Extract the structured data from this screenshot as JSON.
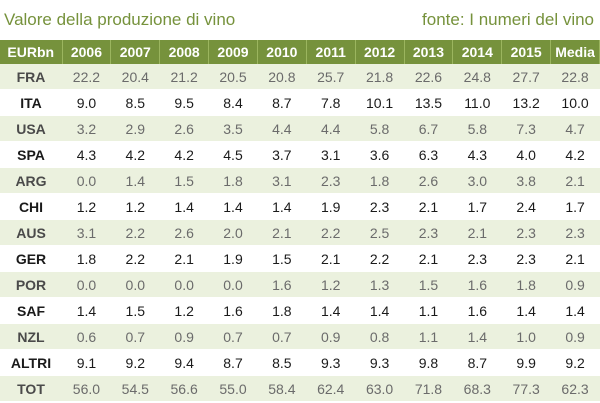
{
  "header": {
    "title": "Valore della produzione di vino",
    "source": "fonte: I numeri del vino"
  },
  "table": {
    "columns": [
      "EURbn",
      "2006",
      "2007",
      "2008",
      "2009",
      "2010",
      "2011",
      "2012",
      "2013",
      "2014",
      "2015",
      "Media"
    ],
    "rows": [
      [
        "FRA",
        "22.2",
        "20.4",
        "21.2",
        "20.5",
        "20.8",
        "25.7",
        "21.8",
        "22.6",
        "24.8",
        "27.7",
        "22.8"
      ],
      [
        "ITA",
        "9.0",
        "8.5",
        "9.5",
        "8.4",
        "8.7",
        "7.8",
        "10.1",
        "13.5",
        "11.0",
        "13.2",
        "10.0"
      ],
      [
        "USA",
        "3.2",
        "2.9",
        "2.6",
        "3.5",
        "4.4",
        "4.4",
        "5.8",
        "6.7",
        "5.8",
        "7.3",
        "4.7"
      ],
      [
        "SPA",
        "4.3",
        "4.2",
        "4.2",
        "4.5",
        "3.7",
        "3.1",
        "3.6",
        "6.3",
        "4.3",
        "4.0",
        "4.2"
      ],
      [
        "ARG",
        "0.0",
        "1.4",
        "1.5",
        "1.8",
        "3.1",
        "2.3",
        "1.8",
        "2.6",
        "3.0",
        "3.8",
        "2.1"
      ],
      [
        "CHI",
        "1.2",
        "1.2",
        "1.4",
        "1.4",
        "1.4",
        "1.9",
        "2.3",
        "2.1",
        "1.7",
        "2.4",
        "1.7"
      ],
      [
        "AUS",
        "3.1",
        "2.2",
        "2.6",
        "2.0",
        "2.1",
        "2.2",
        "2.5",
        "2.3",
        "2.1",
        "2.3",
        "2.3"
      ],
      [
        "GER",
        "1.8",
        "2.2",
        "2.1",
        "1.9",
        "1.5",
        "2.1",
        "2.2",
        "2.1",
        "2.3",
        "2.3",
        "2.1"
      ],
      [
        "POR",
        "0.0",
        "0.0",
        "0.0",
        "0.0",
        "1.6",
        "1.2",
        "1.3",
        "1.5",
        "1.6",
        "1.8",
        "0.9"
      ],
      [
        "SAF",
        "1.4",
        "1.5",
        "1.2",
        "1.6",
        "1.8",
        "1.4",
        "1.4",
        "1.1",
        "1.6",
        "1.4",
        "1.4"
      ],
      [
        "NZL",
        "0.6",
        "0.7",
        "0.9",
        "0.7",
        "0.7",
        "0.9",
        "0.8",
        "1.1",
        "1.4",
        "1.0",
        "0.9"
      ],
      [
        "ALTRI",
        "9.1",
        "9.2",
        "9.4",
        "8.7",
        "8.5",
        "9.3",
        "9.3",
        "9.8",
        "8.7",
        "9.9",
        "9.2"
      ],
      [
        "TOT",
        "56.0",
        "54.5",
        "56.6",
        "55.0",
        "58.4",
        "62.4",
        "63.0",
        "71.8",
        "68.3",
        "77.3",
        "62.3"
      ]
    ]
  }
}
